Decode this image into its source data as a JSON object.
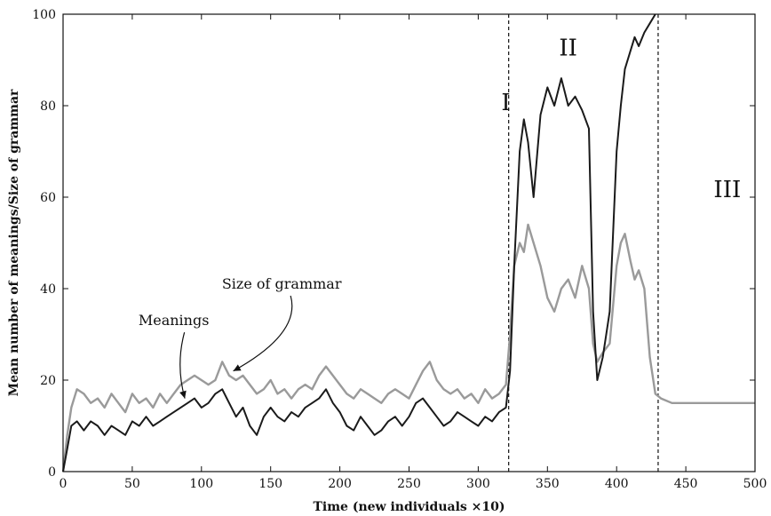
{
  "chart_data": {
    "type": "line",
    "xlabel": "Time (new individuals ×10)",
    "ylabel": "Mean number of meanings/Size of grammar",
    "xlim": [
      0,
      500
    ],
    "ylim": [
      0,
      100
    ],
    "xticks": [
      0,
      50,
      100,
      150,
      200,
      250,
      300,
      350,
      400,
      450,
      500
    ],
    "yticks": [
      0,
      20,
      40,
      60,
      80,
      100
    ],
    "grid": false,
    "region_boundaries": [
      322,
      430
    ],
    "regions": [
      {
        "label": "I",
        "x": 320,
        "y": 79
      },
      {
        "label": "II",
        "x": 365,
        "y": 91
      },
      {
        "label": "III",
        "x": 480,
        "y": 60
      }
    ],
    "annotations": [
      {
        "text": "Meanings",
        "x": 80,
        "y": 32,
        "target_x": 88,
        "target_y": 16
      },
      {
        "text": "Size of grammar",
        "x": 158,
        "y": 40,
        "target_x": 123,
        "target_y": 22
      }
    ],
    "series": [
      {
        "name": "Size of grammar",
        "color": "#9a9a9a",
        "x": [
          0,
          3,
          6,
          10,
          15,
          20,
          25,
          30,
          35,
          40,
          45,
          50,
          55,
          60,
          65,
          70,
          75,
          80,
          85,
          90,
          95,
          100,
          105,
          110,
          115,
          120,
          125,
          130,
          135,
          140,
          145,
          150,
          155,
          160,
          165,
          170,
          175,
          180,
          185,
          190,
          195,
          200,
          205,
          210,
          215,
          220,
          225,
          230,
          235,
          240,
          245,
          250,
          255,
          260,
          265,
          270,
          275,
          280,
          285,
          290,
          295,
          300,
          305,
          310,
          315,
          320,
          323,
          326,
          330,
          333,
          336,
          340,
          345,
          350,
          355,
          360,
          365,
          370,
          375,
          380,
          383,
          386,
          390,
          395,
          400,
          403,
          406,
          410,
          413,
          416,
          420,
          424,
          428,
          432,
          440,
          450,
          460,
          470,
          480,
          490,
          500
        ],
        "y": [
          0,
          8,
          14,
          18,
          17,
          15,
          16,
          14,
          17,
          15,
          13,
          17,
          15,
          16,
          14,
          17,
          15,
          17,
          19,
          20,
          21,
          20,
          19,
          20,
          24,
          21,
          20,
          21,
          19,
          17,
          18,
          20,
          17,
          18,
          16,
          18,
          19,
          18,
          21,
          23,
          21,
          19,
          17,
          16,
          18,
          17,
          16,
          15,
          17,
          18,
          17,
          16,
          19,
          22,
          24,
          20,
          18,
          17,
          18,
          16,
          17,
          15,
          18,
          16,
          17,
          19,
          30,
          45,
          50,
          48,
          54,
          50,
          45,
          38,
          35,
          40,
          42,
          38,
          45,
          40,
          28,
          24,
          26,
          28,
          45,
          50,
          52,
          46,
          42,
          44,
          40,
          25,
          17,
          16,
          15,
          15,
          15,
          15,
          15,
          15,
          15
        ]
      },
      {
        "name": "Meanings",
        "color": "#1a1a1a",
        "x": [
          0,
          3,
          6,
          10,
          15,
          20,
          25,
          30,
          35,
          40,
          45,
          50,
          55,
          60,
          65,
          70,
          75,
          80,
          85,
          90,
          95,
          100,
          105,
          110,
          115,
          120,
          125,
          130,
          135,
          140,
          145,
          150,
          155,
          160,
          165,
          170,
          175,
          180,
          185,
          190,
          195,
          200,
          205,
          210,
          215,
          220,
          225,
          230,
          235,
          240,
          245,
          250,
          255,
          260,
          265,
          270,
          275,
          280,
          285,
          290,
          295,
          300,
          305,
          310,
          315,
          320,
          323,
          326,
          330,
          333,
          336,
          340,
          345,
          350,
          355,
          360,
          365,
          370,
          375,
          380,
          383,
          386,
          390,
          395,
          400,
          403,
          406,
          410,
          413,
          416,
          420,
          424,
          428
        ],
        "y": [
          0,
          5,
          10,
          11,
          9,
          11,
          10,
          8,
          10,
          9,
          8,
          11,
          10,
          12,
          10,
          11,
          12,
          13,
          14,
          15,
          16,
          14,
          15,
          17,
          18,
          15,
          12,
          14,
          10,
          8,
          12,
          14,
          12,
          11,
          13,
          12,
          14,
          15,
          16,
          18,
          15,
          13,
          10,
          9,
          12,
          10,
          8,
          9,
          11,
          12,
          10,
          12,
          15,
          16,
          14,
          12,
          10,
          11,
          13,
          12,
          11,
          10,
          12,
          11,
          13,
          14,
          22,
          45,
          70,
          77,
          72,
          60,
          78,
          84,
          80,
          86,
          80,
          82,
          79,
          75,
          35,
          20,
          25,
          35,
          70,
          80,
          88,
          92,
          95,
          93,
          96,
          98,
          100
        ]
      }
    ]
  }
}
